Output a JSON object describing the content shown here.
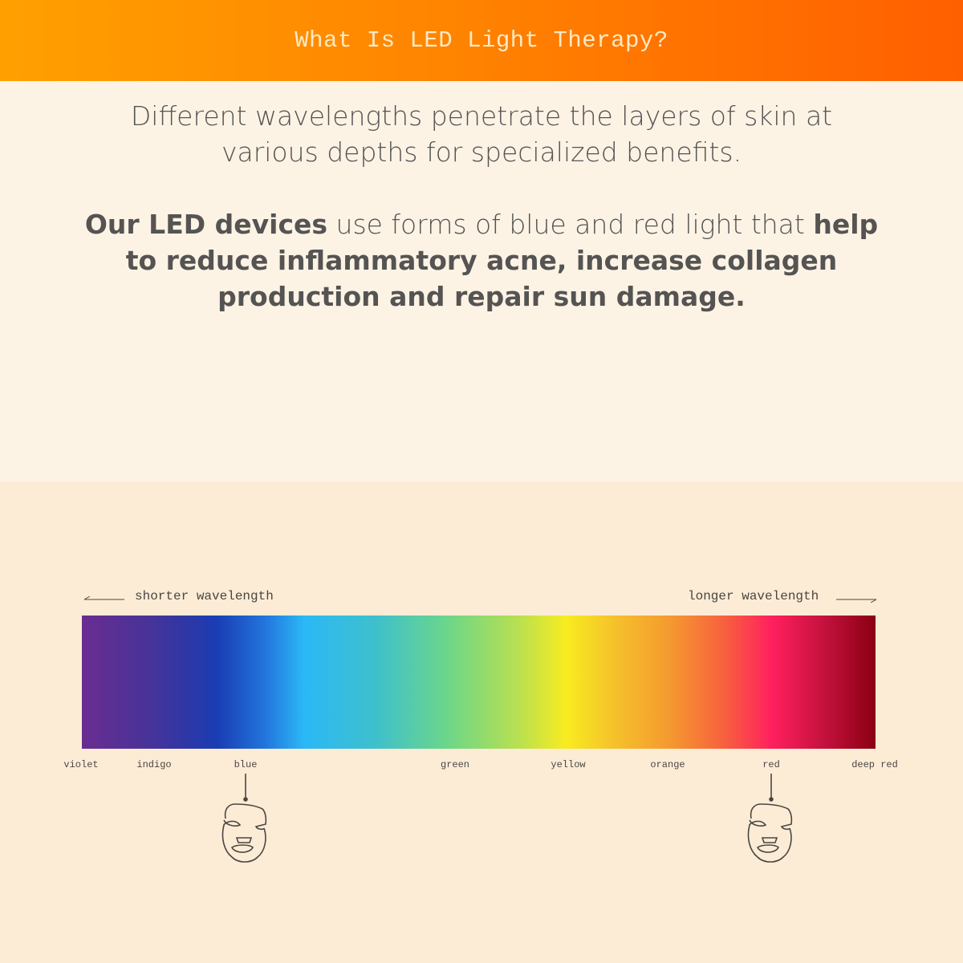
{
  "header": {
    "title": "What Is LED Light Therapy?"
  },
  "intro": {
    "paragraph1": "Different wavelengths penetrate the layers of skin at various depths for specialized benefits.",
    "paragraph2": {
      "bold1": "Our LED devices",
      "normal1": " use forms of blue and red light that ",
      "bold2": "help to reduce inflammatory acne, increase collagen production and repair sun damage."
    }
  },
  "spectrum": {
    "left_label": "shorter wavelength",
    "right_label": "longer wavelength",
    "colors": [
      {
        "label": "violet"
      },
      {
        "label": "indigo"
      },
      {
        "label": "blue"
      },
      {
        "label": "green"
      },
      {
        "label": "yellow"
      },
      {
        "label": "orange"
      },
      {
        "label": "red"
      },
      {
        "label": "deep red"
      }
    ],
    "highlighted": [
      "blue",
      "red"
    ],
    "icons": [
      "face-mask-icon",
      "face-mask-icon"
    ]
  },
  "colors": {
    "header_start": "#ffa000",
    "header_end": "#ff5f00",
    "text": "#555453",
    "background_top": "#fdf3e5",
    "background_bottom": "#fcecd5"
  }
}
